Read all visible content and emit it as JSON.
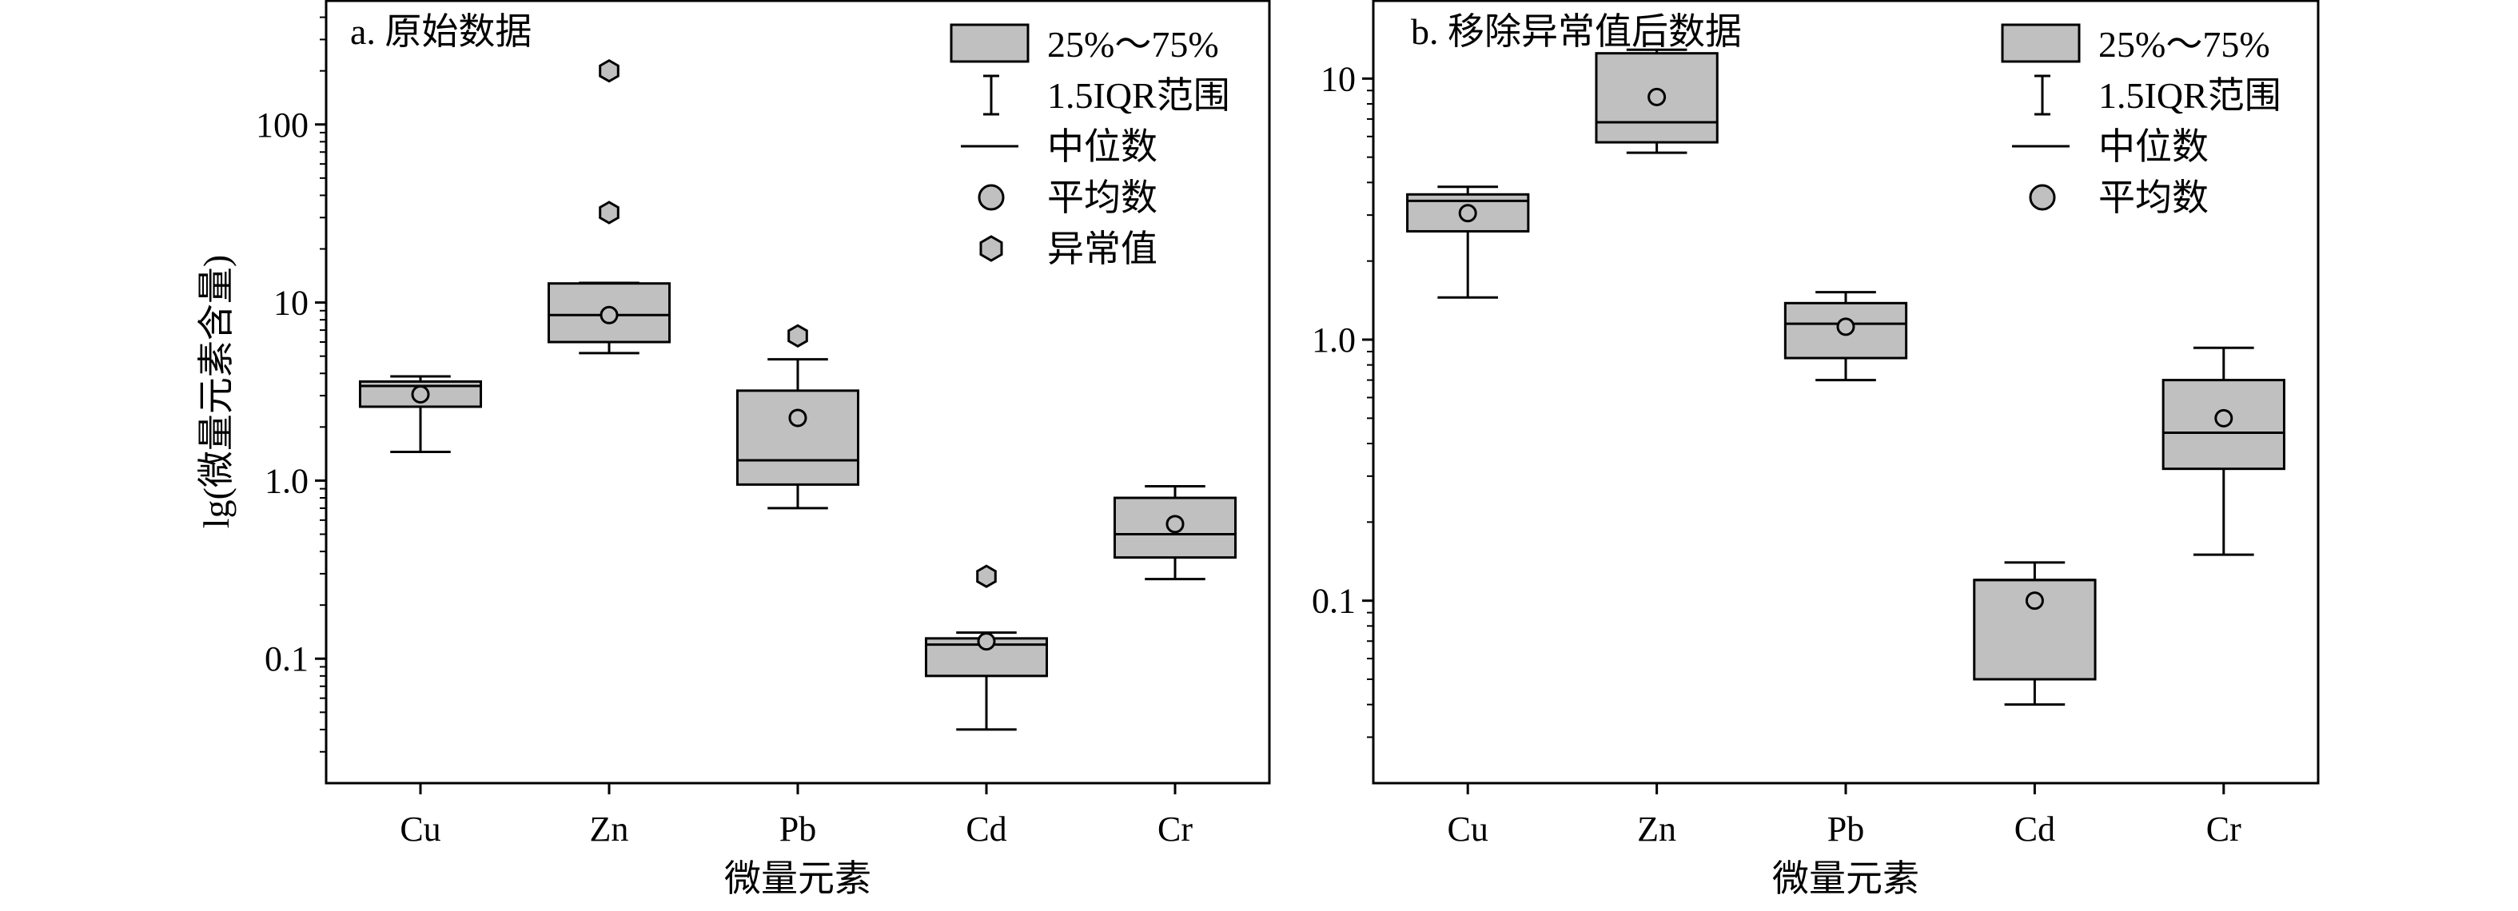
{
  "chart_data": [
    {
      "type": "box",
      "title": "a. 原始数据",
      "xlabel": "微量元素",
      "ylabel": "lg(微量元素含量)",
      "yscale": "log",
      "ylim": [
        0.02,
        500
      ],
      "yticks": [
        0.1,
        1,
        10,
        100
      ],
      "ytick_labels": [
        "0.1",
        "1.0",
        "10",
        "100"
      ],
      "categories": [
        "Cu",
        "Zn",
        "Pb",
        "Cd",
        "Cr"
      ],
      "legend_position": "top-right",
      "legend": [
        {
          "key": "box",
          "label": "25%～75%"
        },
        {
          "key": "whisker",
          "label": "1.5IQR范围"
        },
        {
          "key": "median",
          "label": "中位数"
        },
        {
          "key": "mean",
          "label": "平均数"
        },
        {
          "key": "outlier",
          "label": "异常值"
        }
      ],
      "boxes": [
        {
          "q1": 2.6,
          "median": 3.4,
          "q3": 3.6,
          "whisker_low": 1.45,
          "whisker_high": 3.85,
          "mean": 3.05,
          "outliers": []
        },
        {
          "q1": 6.0,
          "median": 8.5,
          "q3": 12.8,
          "whisker_low": 5.2,
          "whisker_high": 12.9,
          "mean": 8.5,
          "outliers": [
            32,
            200
          ]
        },
        {
          "q1": 0.95,
          "median": 1.3,
          "q3": 3.2,
          "whisker_low": 0.7,
          "whisker_high": 4.8,
          "mean": 2.25,
          "outliers": [
            6.5
          ]
        },
        {
          "q1": 0.08,
          "median": 0.12,
          "q3": 0.13,
          "whisker_low": 0.04,
          "whisker_high": 0.14,
          "mean": 0.125,
          "outliers": [
            0.29
          ]
        },
        {
          "q1": 0.37,
          "median": 0.5,
          "q3": 0.8,
          "whisker_low": 0.28,
          "whisker_high": 0.93,
          "mean": 0.57,
          "outliers": []
        }
      ]
    },
    {
      "type": "box",
      "title": "b. 移除异常值后数据",
      "xlabel": "微量元素",
      "ylabel": "",
      "yscale": "log",
      "ylim": [
        0.02,
        20
      ],
      "yticks": [
        0.1,
        1,
        10
      ],
      "ytick_labels": [
        "0.1",
        "1.0",
        "10"
      ],
      "categories": [
        "Cu",
        "Zn",
        "Pb",
        "Cd",
        "Cr"
      ],
      "legend_position": "top-right",
      "legend": [
        {
          "key": "box",
          "label": "25%～75%"
        },
        {
          "key": "whisker",
          "label": "1.5IQR范围"
        },
        {
          "key": "median",
          "label": "中位数"
        },
        {
          "key": "mean",
          "label": "平均数"
        }
      ],
      "boxes": [
        {
          "q1": 2.6,
          "median": 3.4,
          "q3": 3.6,
          "whisker_low": 1.45,
          "whisker_high": 3.85,
          "mean": 3.05,
          "outliers": []
        },
        {
          "q1": 5.7,
          "median": 6.8,
          "q3": 12.5,
          "whisker_low": 5.2,
          "whisker_high": 12.9,
          "mean": 8.5,
          "outliers": []
        },
        {
          "q1": 0.85,
          "median": 1.15,
          "q3": 1.38,
          "whisker_low": 0.7,
          "whisker_high": 1.52,
          "mean": 1.12,
          "outliers": []
        },
        {
          "q1": 0.05,
          "median": 0.12,
          "q3": 0.12,
          "whisker_low": 0.04,
          "whisker_high": 0.14,
          "mean": 0.1,
          "outliers": []
        },
        {
          "q1": 0.32,
          "median": 0.44,
          "q3": 0.7,
          "whisker_low": 0.15,
          "whisker_high": 0.93,
          "mean": 0.5,
          "outliers": []
        }
      ]
    }
  ]
}
